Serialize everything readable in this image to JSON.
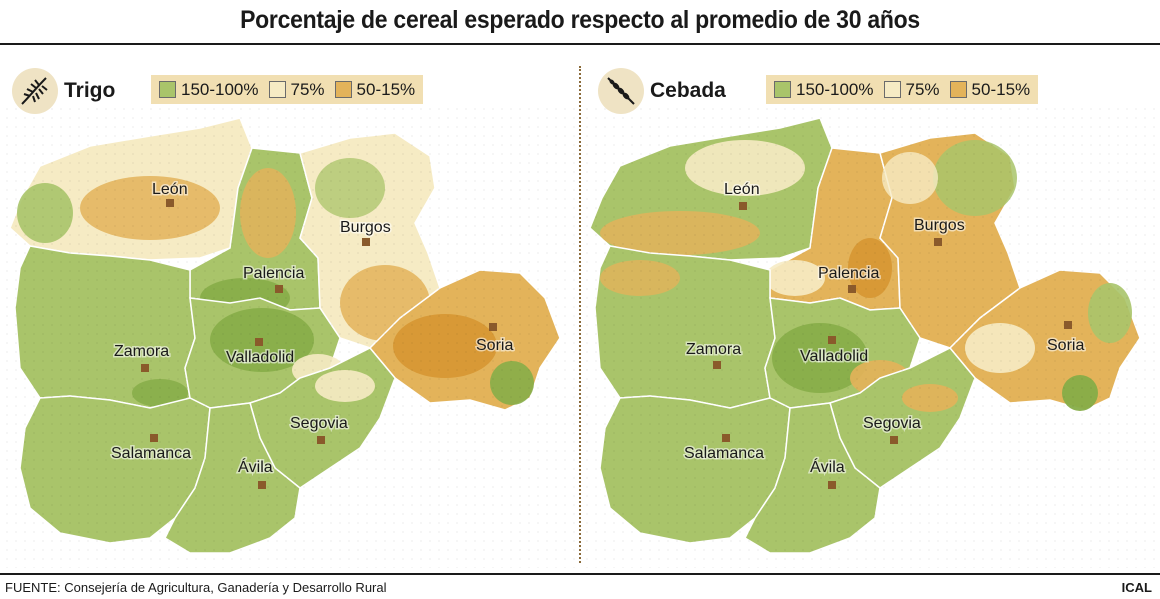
{
  "title": "Porcentaje de cereal esperado respecto al promedio de 30 años",
  "colors": {
    "high": "#a9c46a",
    "high_dark": "#86ad48",
    "mid": "#f6ebc4",
    "low": "#e3b35a",
    "low_dark": "#d69632",
    "border": "#ffffff",
    "marker": "#8a5a2b"
  },
  "legend": {
    "items": [
      {
        "label": "150-100%",
        "color": "#a9c46a"
      },
      {
        "label": "75%",
        "color": "#f6ebc4"
      },
      {
        "label": "50-15%",
        "color": "#e3b35a"
      }
    ]
  },
  "panels": [
    {
      "crop": "Trigo",
      "icon": "wheat-icon",
      "provinces": [
        {
          "name": "León",
          "level": "mid"
        },
        {
          "name": "Burgos",
          "level": "mid"
        },
        {
          "name": "Palencia",
          "level": "high"
        },
        {
          "name": "Zamora",
          "level": "high"
        },
        {
          "name": "Valladolid",
          "level": "high"
        },
        {
          "name": "Soria",
          "level": "low"
        },
        {
          "name": "Segovia",
          "level": "high"
        },
        {
          "name": "Salamanca",
          "level": "high"
        },
        {
          "name": "Ávila",
          "level": "high"
        }
      ]
    },
    {
      "crop": "Cebada",
      "icon": "barley-icon",
      "provinces": [
        {
          "name": "León",
          "level": "high"
        },
        {
          "name": "Burgos",
          "level": "low"
        },
        {
          "name": "Palencia",
          "level": "low"
        },
        {
          "name": "Zamora",
          "level": "high"
        },
        {
          "name": "Valladolid",
          "level": "high"
        },
        {
          "name": "Soria",
          "level": "low"
        },
        {
          "name": "Segovia",
          "level": "high"
        },
        {
          "name": "Salamanca",
          "level": "high"
        },
        {
          "name": "Ávila",
          "level": "high"
        }
      ]
    }
  ],
  "source": "FUENTE: Consejería de Agricultura, Ganadería y Desarrollo Rural",
  "credit": "ICAL"
}
